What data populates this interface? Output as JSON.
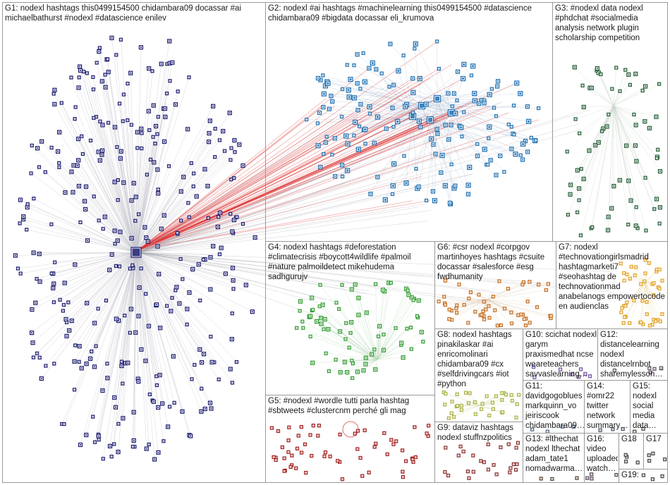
{
  "panels": [
    {
      "id": "g1",
      "label": "G1: nodexl hashtags this0499154500 chidambara09 docassar #ai michaelbathurst #nodexl #datascience enilev",
      "node_color": "#1a1a6e"
    },
    {
      "id": "g2",
      "label": "G2: nodexl #ai hashtags #machinelearning this0499154500 #datascience chidambara09 #bigdata docassar eli_krumova",
      "node_color": "#1e6fb0"
    },
    {
      "id": "g3",
      "label": "G3: #nodexl data nodexl #phdchat #socialmedia analysis network plugin scholarship competition",
      "node_color": "#1f5a32"
    },
    {
      "id": "g4",
      "label": "G4: nodexl hashtags #deforestation #climatecrisis #boycott4wildlife #palmoil #nature palmoildetect mikehudema sadhgurujv",
      "node_color": "#2e9a2e"
    },
    {
      "id": "g5",
      "label": "G5: #nodexl #wordle tutti parla hashtag #sbtweets #clustercnm perché gli mag",
      "node_color": "#a01818"
    },
    {
      "id": "g6",
      "label": "G6: #csr nodexl #corpgov martinhoyes hashtags #csuite docassar #salesforce #esg fwdhumanity",
      "node_color": "#c46a1a"
    },
    {
      "id": "g7",
      "label": "G7: nodexl #technovationgirlsmadrid hashtagmarketi7 #seohashtag de technovationmad anabelanogs empowertocode en audienclas",
      "node_color": "#e0a020"
    },
    {
      "id": "g8",
      "label": "G8: nodexl hashtags pinakilaskar #ai enricomolinari chidambara09 #cx #selfdrivingcars #iot #python",
      "node_color": "#a8b040"
    },
    {
      "id": "g9",
      "label": "G9: dataviz hashtags nodexl stuffnzpolitics",
      "node_color": "#8a2a2a"
    },
    {
      "id": "g10",
      "label": "G10: scichat nodexl garym praxismedhat ncse weareteachers savvaslearning…",
      "node_color": "#7050a0"
    },
    {
      "id": "g11",
      "label": "G11: davidgogoblues markquinn_vo jeiriscook chidambara09…",
      "node_color": "#506080"
    },
    {
      "id": "g12",
      "label": "G12: distancelearning nodexl distancelrnbot sharemylesson…",
      "node_color": "#605060"
    },
    {
      "id": "g13",
      "label": "G13: #lthechat nodexl lthechat adam_tate1 nomadwarma…",
      "node_color": "#504030"
    },
    {
      "id": "g14",
      "label": "G14: #omr22 twitter network summary…",
      "node_color": "#405060"
    },
    {
      "id": "g15",
      "label": "G15: nodexl social media data…",
      "node_color": "#405040"
    },
    {
      "id": "g16",
      "label": "G16: video uploaded watch…",
      "node_color": "#504050"
    },
    {
      "id": "g17",
      "label": "G17",
      "node_color": "#404040"
    },
    {
      "id": "g18",
      "label": "G18",
      "node_color": "#404040"
    },
    {
      "id": "g19",
      "label": "G19:",
      "node_color": "#404040"
    }
  ]
}
